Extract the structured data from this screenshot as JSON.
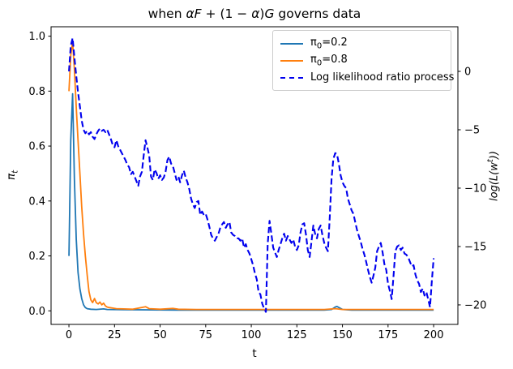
{
  "title": {
    "seg1": "when ",
    "seg2": "αF",
    "seg3": " + (1 − ",
    "seg4": "α",
    "seg5": ")",
    "seg6": "G",
    "seg7": " governs data"
  },
  "axes": {
    "xlabel": "t",
    "ylabel_left": {
      "base": "π",
      "sub": "t"
    },
    "ylabel_right": {
      "pre": "log(L(w",
      "sup": "t",
      "post": "))"
    }
  },
  "legend": {
    "entries": [
      {
        "parts": [
          {
            "text": "π"
          },
          {
            "text": "0",
            "sub": true
          },
          {
            "text": "=0.2"
          }
        ],
        "color": "#1f77b4",
        "dash": false
      },
      {
        "parts": [
          {
            "text": "π"
          },
          {
            "text": "0",
            "sub": true
          },
          {
            "text": "=0.8"
          }
        ],
        "color": "#ff7f0e",
        "dash": false
      },
      {
        "parts": [
          {
            "text": "Log likelihood ratio process"
          }
        ],
        "color": "#0000ee",
        "dash": true
      }
    ]
  },
  "chart_data": {
    "type": "line",
    "title": "when αF + (1 − α)G governs data",
    "xlabel": "t",
    "ylabel_left": "π_t",
    "ylabel_right": "log(L(w^t))",
    "legend_position": "upper right",
    "grid": false,
    "xlim": [
      -9.8,
      213.3
    ],
    "ylim_left": [
      -0.0493,
      1.0343
    ],
    "ylim_right": [
      -21.67,
      3.82
    ],
    "x_ticks": [
      0,
      25,
      50,
      75,
      100,
      125,
      150,
      175,
      200
    ],
    "x_ticklabels": [
      "0",
      "25",
      "50",
      "75",
      "100",
      "125",
      "150",
      "175",
      "200"
    ],
    "y_ticks_left": [
      0.0,
      0.2,
      0.4,
      0.6,
      0.8,
      1.0
    ],
    "y_ticklabels_left": [
      "0.0",
      "0.2",
      "0.4",
      "0.6",
      "0.8",
      "1.0"
    ],
    "y_ticks_right": [
      0,
      -5,
      -10,
      -15,
      -20
    ],
    "y_ticklabels_right": [
      "0",
      "−5",
      "−10",
      "−15",
      "−20"
    ],
    "series": [
      {
        "name": "pi0=0.2",
        "axis": "left",
        "color": "#1f77b4",
        "style": "solid",
        "points": [
          [
            0,
            0.2
          ],
          [
            1,
            0.62
          ],
          [
            2,
            0.79
          ],
          [
            3,
            0.48
          ],
          [
            4,
            0.26
          ],
          [
            5,
            0.14
          ],
          [
            6,
            0.08
          ],
          [
            7,
            0.045
          ],
          [
            8,
            0.022
          ],
          [
            9,
            0.012
          ],
          [
            10,
            0.008
          ],
          [
            12,
            0.006
          ],
          [
            15,
            0.005
          ],
          [
            19,
            0.007
          ],
          [
            21,
            0.005
          ],
          [
            30,
            0.004
          ],
          [
            60,
            0.003
          ],
          [
            100,
            0.003
          ],
          [
            140,
            0.003
          ],
          [
            144,
            0.005
          ],
          [
            146,
            0.014
          ],
          [
            147,
            0.016
          ],
          [
            148,
            0.012
          ],
          [
            150,
            0.005
          ],
          [
            155,
            0.003
          ],
          [
            200,
            0.003
          ]
        ]
      },
      {
        "name": "pi0=0.8",
        "axis": "left",
        "color": "#ff7f0e",
        "style": "solid",
        "points": [
          [
            0,
            0.8
          ],
          [
            1,
            0.93
          ],
          [
            2,
            0.98
          ],
          [
            3,
            0.88
          ],
          [
            4,
            0.74
          ],
          [
            5,
            0.62
          ],
          [
            6,
            0.5
          ],
          [
            7,
            0.38
          ],
          [
            8,
            0.28
          ],
          [
            9,
            0.2
          ],
          [
            10,
            0.13
          ],
          [
            11,
            0.07
          ],
          [
            12,
            0.04
          ],
          [
            13,
            0.03
          ],
          [
            14,
            0.045
          ],
          [
            15,
            0.03
          ],
          [
            16,
            0.025
          ],
          [
            17,
            0.032
          ],
          [
            18,
            0.022
          ],
          [
            19,
            0.028
          ],
          [
            20,
            0.018
          ],
          [
            21,
            0.014
          ],
          [
            22,
            0.012
          ],
          [
            24,
            0.01
          ],
          [
            26,
            0.008
          ],
          [
            30,
            0.007
          ],
          [
            35,
            0.006
          ],
          [
            42,
            0.015
          ],
          [
            44,
            0.008
          ],
          [
            50,
            0.006
          ],
          [
            57,
            0.009
          ],
          [
            60,
            0.006
          ],
          [
            70,
            0.005
          ],
          [
            100,
            0.005
          ],
          [
            140,
            0.005
          ],
          [
            146,
            0.008
          ],
          [
            150,
            0.005
          ],
          [
            200,
            0.005
          ]
        ]
      },
      {
        "name": "Log likelihood ratio process",
        "axis": "right",
        "color": "#0000ee",
        "style": "dashed",
        "points": [
          [
            0,
            0.0
          ],
          [
            1,
            2.2
          ],
          [
            2,
            2.85
          ],
          [
            3,
            1.2
          ],
          [
            4,
            -0.4
          ],
          [
            5,
            -1.8
          ],
          [
            6,
            -3.0
          ],
          [
            7,
            -4.2
          ],
          [
            8,
            -5.0
          ],
          [
            9,
            -5.3
          ],
          [
            10,
            -5.1
          ],
          [
            11,
            -5.4
          ],
          [
            12,
            -5.2
          ],
          [
            13,
            -5.6
          ],
          [
            14,
            -5.8
          ],
          [
            15,
            -5.4
          ],
          [
            16,
            -5.1
          ],
          [
            17,
            -4.9
          ],
          [
            18,
            -5.1
          ],
          [
            19,
            -5.0
          ],
          [
            20,
            -5.2
          ],
          [
            21,
            -5.0
          ],
          [
            22,
            -5.4
          ],
          [
            23,
            -5.8
          ],
          [
            24,
            -6.3
          ],
          [
            25,
            -6.5
          ],
          [
            26,
            -5.9
          ],
          [
            27,
            -6.4
          ],
          [
            28,
            -6.7
          ],
          [
            29,
            -7.0
          ],
          [
            30,
            -7.3
          ],
          [
            31,
            -7.6
          ],
          [
            32,
            -8.0
          ],
          [
            33,
            -8.2
          ],
          [
            34,
            -8.8
          ],
          [
            35,
            -8.6
          ],
          [
            36,
            -9.0
          ],
          [
            37,
            -9.4
          ],
          [
            38,
            -9.8
          ],
          [
            39,
            -9.0
          ],
          [
            40,
            -8.6
          ],
          [
            41,
            -7.2
          ],
          [
            42,
            -5.9
          ],
          [
            43,
            -6.5
          ],
          [
            44,
            -7.2
          ],
          [
            45,
            -9.0
          ],
          [
            46,
            -9.3
          ],
          [
            47,
            -8.4
          ],
          [
            48,
            -8.7
          ],
          [
            49,
            -9.2
          ],
          [
            50,
            -8.9
          ],
          [
            51,
            -9.3
          ],
          [
            52,
            -9.1
          ],
          [
            53,
            -8.6
          ],
          [
            54,
            -7.6
          ],
          [
            55,
            -7.3
          ],
          [
            56,
            -7.9
          ],
          [
            57,
            -8.1
          ],
          [
            58,
            -8.7
          ],
          [
            59,
            -9.3
          ],
          [
            60,
            -9.0
          ],
          [
            61,
            -9.5
          ],
          [
            62,
            -8.9
          ],
          [
            63,
            -8.5
          ],
          [
            64,
            -9.1
          ],
          [
            65,
            -9.5
          ],
          [
            66,
            -10.1
          ],
          [
            67,
            -10.9
          ],
          [
            68,
            -11.4
          ],
          [
            69,
            -11.7
          ],
          [
            70,
            -11.2
          ],
          [
            71,
            -11.1
          ],
          [
            72,
            -12.3
          ],
          [
            73,
            -12.0
          ],
          [
            74,
            -12.3
          ],
          [
            75,
            -12.2
          ],
          [
            76,
            -12.7
          ],
          [
            77,
            -13.3
          ],
          [
            78,
            -14.0
          ],
          [
            79,
            -14.3
          ],
          [
            80,
            -14.5
          ],
          [
            81,
            -14.2
          ],
          [
            82,
            -13.9
          ],
          [
            83,
            -13.4
          ],
          [
            84,
            -13.1
          ],
          [
            85,
            -12.9
          ],
          [
            86,
            -13.4
          ],
          [
            87,
            -13.1
          ],
          [
            88,
            -12.9
          ],
          [
            89,
            -13.8
          ],
          [
            90,
            -14.0
          ],
          [
            91,
            -14.1
          ],
          [
            92,
            -14.3
          ],
          [
            93,
            -14.3
          ],
          [
            94,
            -14.5
          ],
          [
            95,
            -14.3
          ],
          [
            96,
            -15.1
          ],
          [
            97,
            -14.8
          ],
          [
            98,
            -15.3
          ],
          [
            99,
            -15.6
          ],
          [
            100,
            -16.1
          ],
          [
            101,
            -16.6
          ],
          [
            102,
            -17.3
          ],
          [
            103,
            -17.8
          ],
          [
            104,
            -18.9
          ],
          [
            105,
            -19.1
          ],
          [
            106,
            -19.9
          ],
          [
            107,
            -20.3
          ],
          [
            108,
            -20.6
          ],
          [
            109,
            -14.8
          ],
          [
            110,
            -12.8
          ],
          [
            111,
            -13.9
          ],
          [
            112,
            -15.1
          ],
          [
            113,
            -15.5
          ],
          [
            114,
            -15.9
          ],
          [
            115,
            -15.3
          ],
          [
            116,
            -14.8
          ],
          [
            117,
            -14.3
          ],
          [
            118,
            -13.9
          ],
          [
            119,
            -14.5
          ],
          [
            120,
            -14.1
          ],
          [
            121,
            -14.4
          ],
          [
            122,
            -14.7
          ],
          [
            123,
            -14.4
          ],
          [
            124,
            -15.0
          ],
          [
            125,
            -15.3
          ],
          [
            126,
            -14.9
          ],
          [
            127,
            -13.8
          ],
          [
            128,
            -13.1
          ],
          [
            129,
            -13.0
          ],
          [
            130,
            -14.0
          ],
          [
            131,
            -15.3
          ],
          [
            132,
            -15.9
          ],
          [
            133,
            -14.6
          ],
          [
            134,
            -13.2
          ],
          [
            135,
            -13.9
          ],
          [
            136,
            -14.3
          ],
          [
            137,
            -13.5
          ],
          [
            138,
            -13.2
          ],
          [
            139,
            -14.0
          ],
          [
            140,
            -14.7
          ],
          [
            141,
            -15.1
          ],
          [
            142,
            -15.4
          ],
          [
            143,
            -12.6
          ],
          [
            144,
            -9.2
          ],
          [
            145,
            -7.5
          ],
          [
            146,
            -7.0
          ],
          [
            147,
            -7.1
          ],
          [
            148,
            -7.9
          ],
          [
            149,
            -8.9
          ],
          [
            150,
            -9.5
          ],
          [
            151,
            -9.8
          ],
          [
            152,
            -10.0
          ],
          [
            153,
            -10.9
          ],
          [
            154,
            -11.4
          ],
          [
            155,
            -11.9
          ],
          [
            156,
            -12.2
          ],
          [
            157,
            -12.9
          ],
          [
            158,
            -13.6
          ],
          [
            159,
            -14.1
          ],
          [
            160,
            -14.6
          ],
          [
            161,
            -15.2
          ],
          [
            162,
            -15.7
          ],
          [
            163,
            -16.3
          ],
          [
            164,
            -17.0
          ],
          [
            165,
            -17.6
          ],
          [
            166,
            -18.1
          ],
          [
            167,
            -17.5
          ],
          [
            168,
            -16.8
          ],
          [
            169,
            -15.4
          ],
          [
            170,
            -15.0
          ],
          [
            171,
            -14.7
          ],
          [
            172,
            -15.5
          ],
          [
            173,
            -16.5
          ],
          [
            174,
            -17.0
          ],
          [
            175,
            -18.2
          ],
          [
            176,
            -18.8
          ],
          [
            177,
            -19.5
          ],
          [
            178,
            -17.5
          ],
          [
            179,
            -15.4
          ],
          [
            180,
            -15.0
          ],
          [
            181,
            -14.9
          ],
          [
            182,
            -15.3
          ],
          [
            183,
            -15.1
          ],
          [
            184,
            -15.6
          ],
          [
            185,
            -15.7
          ],
          [
            186,
            -15.9
          ],
          [
            187,
            -16.3
          ],
          [
            188,
            -16.7
          ],
          [
            189,
            -16.6
          ],
          [
            190,
            -17.4
          ],
          [
            191,
            -17.9
          ],
          [
            192,
            -18.2
          ],
          [
            193,
            -18.9
          ],
          [
            194,
            -18.6
          ],
          [
            195,
            -19.2
          ],
          [
            196,
            -18.9
          ],
          [
            197,
            -19.5
          ],
          [
            198,
            -20.2
          ],
          [
            199,
            -18.0
          ],
          [
            200,
            -16.0
          ]
        ]
      }
    ]
  }
}
